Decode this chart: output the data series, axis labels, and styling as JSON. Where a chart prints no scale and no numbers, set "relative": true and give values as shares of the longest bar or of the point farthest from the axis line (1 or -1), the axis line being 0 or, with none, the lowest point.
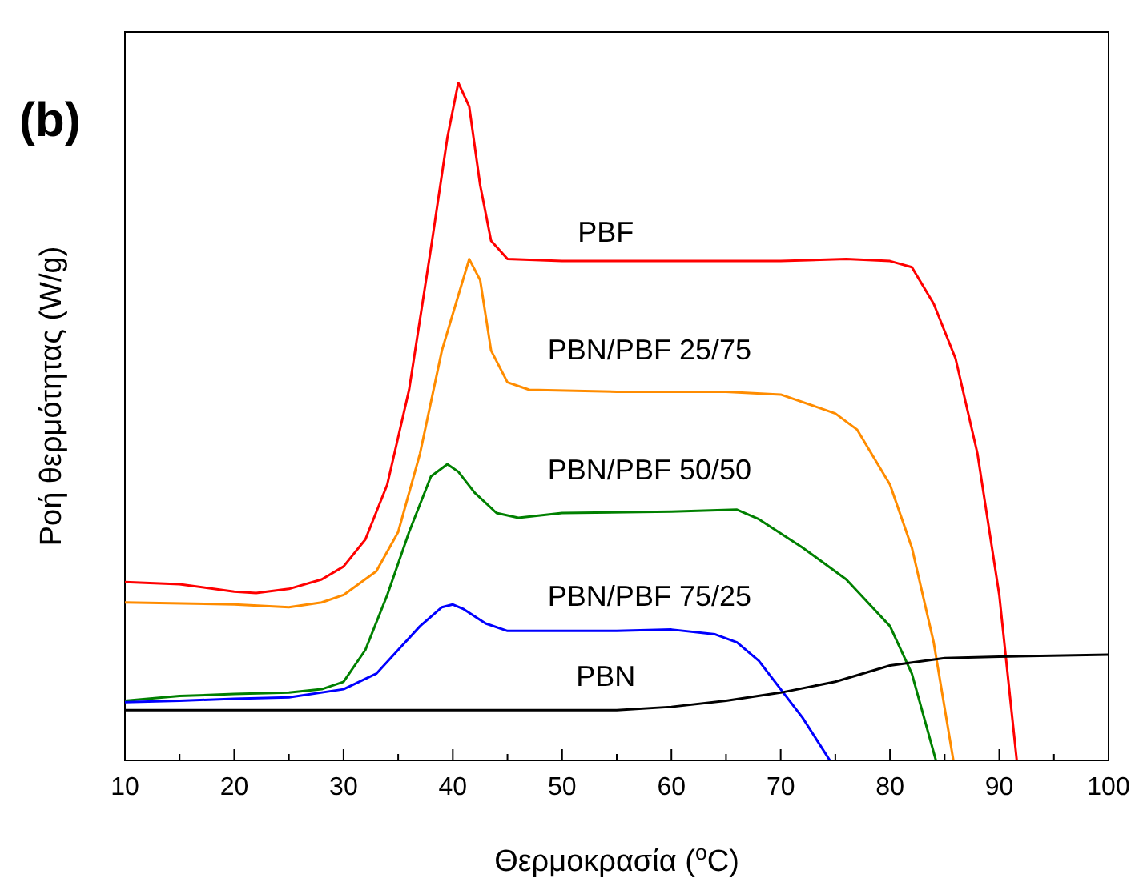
{
  "chart_data": {
    "type": "line",
    "relative": true,
    "xlabel": "Θερμοκρασία ($^{o}$C)",
    "ylabel": "Ροή θερμότητας (W/g)",
    "annotations": [
      "(b)"
    ],
    "xlim": [
      10,
      100
    ],
    "xticks": [
      10,
      20,
      30,
      40,
      50,
      60,
      70,
      80,
      90,
      100
    ],
    "grid": false,
    "legend": false,
    "marker": "none",
    "line_style": "solid",
    "series": [
      {
        "name": "PBF",
        "color": "#ff0000",
        "x": [
          10,
          15,
          20,
          22,
          25,
          28,
          30,
          32,
          34,
          36,
          38,
          39.5,
          40.5,
          41.5,
          42.5,
          43.5,
          45,
          50,
          60,
          70,
          76,
          80,
          82,
          84,
          86,
          88,
          90,
          91.6
        ],
        "values": [
          0.263,
          0.26,
          0.249,
          0.247,
          0.253,
          0.267,
          0.286,
          0.326,
          0.407,
          0.547,
          0.756,
          0.919,
          1,
          0.965,
          0.849,
          0.767,
          0.74,
          0.737,
          0.737,
          0.737,
          0.74,
          0.737,
          0.728,
          0.674,
          0.593,
          0.453,
          0.244,
          0
        ]
      },
      {
        "name": "PBN/PBF 25/75",
        "color": "#ff8c00",
        "x": [
          10,
          20,
          25,
          28,
          30,
          33,
          35,
          37,
          39,
          40.5,
          41.5,
          42.5,
          43.5,
          45,
          47,
          55,
          65,
          70,
          75,
          77,
          80,
          82,
          84,
          85.8
        ],
        "values": [
          0.233,
          0.23,
          0.226,
          0.233,
          0.244,
          0.279,
          0.337,
          0.453,
          0.605,
          0.686,
          0.74,
          0.709,
          0.605,
          0.558,
          0.547,
          0.544,
          0.544,
          0.54,
          0.512,
          0.488,
          0.407,
          0.314,
          0.174,
          0
        ]
      },
      {
        "name": "PBN/PBF 50/50",
        "color": "#008000",
        "x": [
          10,
          15,
          20,
          25,
          28,
          30,
          32,
          34,
          36,
          38,
          39.5,
          40.5,
          42,
          44,
          46,
          50,
          60,
          66,
          68,
          72,
          76,
          80,
          82,
          84.2
        ],
        "values": [
          0.088,
          0.095,
          0.098,
          0.1,
          0.105,
          0.116,
          0.163,
          0.244,
          0.337,
          0.419,
          0.437,
          0.426,
          0.395,
          0.365,
          0.358,
          0.365,
          0.367,
          0.37,
          0.356,
          0.314,
          0.267,
          0.198,
          0.128,
          0
        ]
      },
      {
        "name": "PBN/PBF 75/25",
        "color": "#0000ff",
        "x": [
          10,
          15,
          20,
          25,
          30,
          33,
          35,
          37,
          39,
          40,
          41,
          43,
          45,
          50,
          55,
          60,
          64,
          66,
          68,
          70,
          72,
          74.5
        ],
        "values": [
          0.086,
          0.088,
          0.091,
          0.093,
          0.105,
          0.128,
          0.163,
          0.198,
          0.226,
          0.23,
          0.223,
          0.202,
          0.191,
          0.191,
          0.191,
          0.193,
          0.186,
          0.174,
          0.147,
          0.105,
          0.063,
          0
        ]
      },
      {
        "name": "PBN",
        "color": "#000000",
        "x": [
          10,
          40,
          55,
          60,
          65,
          70,
          75,
          80,
          85,
          90,
          100
        ],
        "values": [
          0.074,
          0.074,
          0.074,
          0.079,
          0.088,
          0.1,
          0.116,
          0.14,
          0.151,
          0.153,
          0.156
        ]
      }
    ]
  }
}
